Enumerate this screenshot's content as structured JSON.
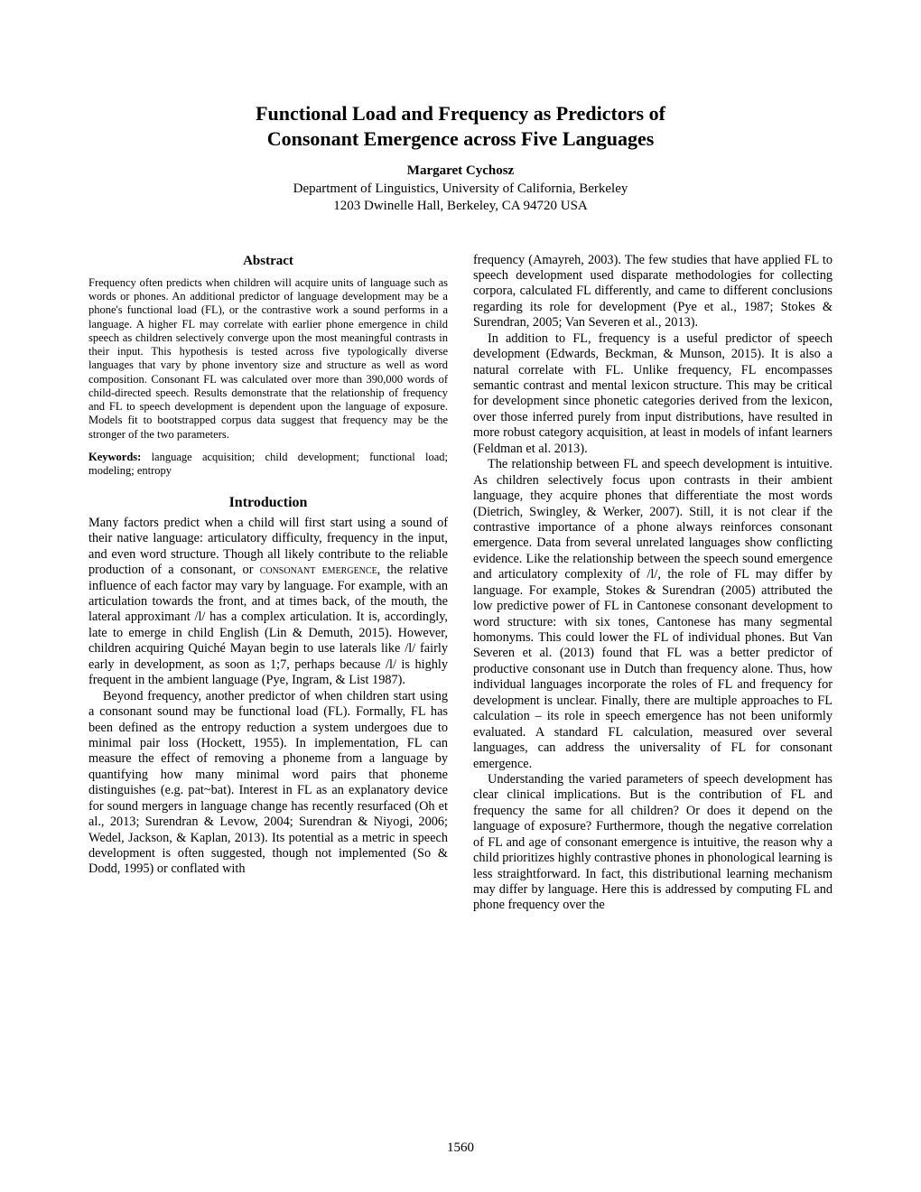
{
  "title_line1": "Functional Load and Frequency as Predictors of",
  "title_line2": "Consonant Emergence across Five Languages",
  "author": "Margaret Cychosz",
  "affil_line1": "Department of Linguistics, University of California, Berkeley",
  "affil_line2": "1203 Dwinelle Hall, Berkeley, CA 94720 USA",
  "abstract_heading": "Abstract",
  "abstract_text": "Frequency often predicts when children will acquire units of language such as words or phones. An additional predictor of language development may be a phone's functional load (FL), or the contrastive work a sound performs in a language. A higher FL may correlate with earlier phone emergence in child speech as children selectively converge upon the most meaningful contrasts in their input. This hypothesis is tested across five typologically diverse languages that vary by phone inventory size and structure as well as word composition. Consonant FL was calculated over more than 390,000 words of child-directed speech. Results demonstrate that the relationship of frequency and FL to speech development is dependent upon the language of exposure. Models fit to bootstrapped corpus data suggest that frequency may be the stronger of the two parameters.",
  "keywords_label": "Keywords:",
  "keywords_text": " language acquisition; child development; functional load; modeling; entropy",
  "intro_heading": "Introduction",
  "intro_p1_a": "Many factors predict when a child will first start using a sound of their native language: articulatory difficulty, frequency in the input, and even word structure. Though all likely contribute to the reliable production of a consonant, or ",
  "intro_p1_smallcaps": "consonant emergence",
  "intro_p1_b": ", the relative influence of each factor may vary by language. For example, with an articulation towards the front, and at times back, of the mouth, the lateral approximant /l/ has a complex articulation. It is, accordingly, late to emerge in child English (Lin & Demuth, 2015). However, children acquiring Quiché Mayan begin to use laterals like /l/ fairly early in development, as soon as 1;7, perhaps because /l/ is highly frequent in the ambient language (Pye, Ingram, & List 1987).",
  "intro_p2": "Beyond frequency, another predictor of when children start using a consonant sound may be functional load (FL). Formally, FL has been defined as the entropy reduction a system undergoes due to minimal pair loss (Hockett, 1955). In implementation, FL can measure the effect of removing a phoneme from a language by quantifying how many minimal word pairs that phoneme distinguishes (e.g. pat~bat). Interest in FL as an explanatory device for sound mergers in language change has recently resurfaced (Oh et al., 2013; Surendran & Levow, 2004; Surendran & Niyogi, 2006; Wedel, Jackson, & Kaplan, 2013). Its potential as a metric in speech development is often suggested, though not implemented (So & Dodd, 1995) or conflated with",
  "col2_p1": "frequency (Amayreh, 2003). The few studies that have applied FL to speech development used disparate methodologies for collecting corpora, calculated FL differently, and came to different conclusions regarding its role for development (Pye et al., 1987; Stokes & Surendran, 2005; Van Severen et al., 2013).",
  "col2_p2": "In addition to FL, frequency is a useful predictor of speech development (Edwards, Beckman, & Munson, 2015). It is also a natural correlate with FL. Unlike frequency, FL encompasses semantic contrast and mental lexicon structure. This may be critical for development since phonetic categories derived from the lexicon, over those inferred purely from input distributions, have resulted in more robust category acquisition, at least in models of infant learners (Feldman et al. 2013).",
  "col2_p3": "The relationship between FL and speech development is intuitive. As children selectively focus upon contrasts in their ambient language, they acquire phones that differentiate the most words (Dietrich, Swingley, & Werker, 2007). Still, it is not clear if the contrastive importance of a phone always reinforces consonant emergence. Data from several unrelated languages show conflicting evidence. Like the relationship between the speech sound emergence and articulatory complexity of /l/, the role of FL may differ by language. For example, Stokes & Surendran (2005) attributed the low predictive power of FL in Cantonese consonant development to word structure: with six tones, Cantonese has many segmental homonyms. This could lower the FL of individual phones. But Van Severen et al. (2013) found that FL was a better predictor of productive consonant use in Dutch than frequency alone. Thus, how individual languages incorporate the roles of FL and frequency for development is unclear. Finally, there are multiple approaches to FL calculation – its role in speech emergence has not been uniformly evaluated. A standard FL calculation, measured over several languages, can address the universality of FL for consonant emergence.",
  "col2_p4": "Understanding the varied parameters of speech development has clear clinical implications. But is the contribution of FL and frequency the same for all children? Or does it depend on the language of exposure? Furthermore, though the negative correlation of FL and age of consonant emergence is intuitive, the reason why a child prioritizes highly contrastive phones in phonological learning is less straightforward. In fact, this distributional learning mechanism may differ by language. Here this is addressed by computing FL and phone frequency over the",
  "page_number": "1560"
}
